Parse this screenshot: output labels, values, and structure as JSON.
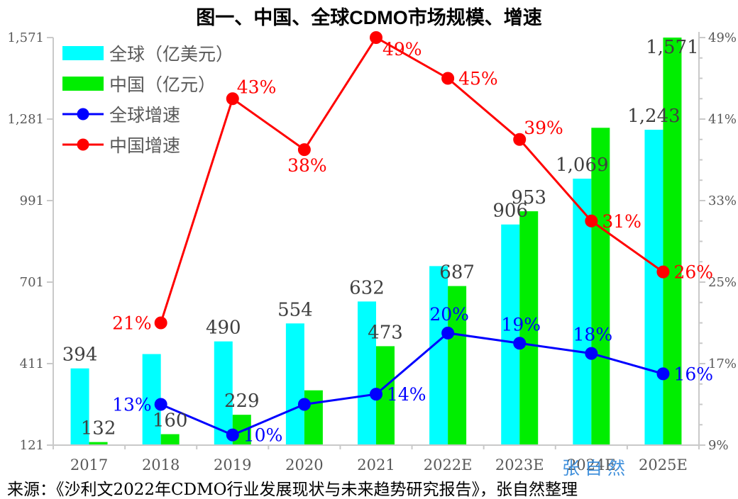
{
  "title": "图一、中国、全球CDMO市场规模、增速",
  "source_text": "来源：《沙利文2022年CDMO行业发展现状与未来趋势研究报告》，张自然整理",
  "watermark": "张自然",
  "colors": {
    "global_bar": "#00ffff",
    "china_bar": "#00ee00",
    "global_line": "#0000ff",
    "china_line": "#ff0000",
    "value_label": "#404040",
    "axis_label": "#595959",
    "axis_line": "#c9c9c9",
    "watermark": "#2e86d9",
    "title": "#000000"
  },
  "chart_data": {
    "type": "bar+line",
    "categories": [
      "2017",
      "2018",
      "2019",
      "2020",
      "2021",
      "2022E",
      "2023E",
      "2024E",
      "2025E"
    ],
    "bar_series": [
      {
        "name": "全球（亿美元）",
        "color_key": "global_bar",
        "axis": "left",
        "values": [
          394,
          445,
          490,
          554,
          632,
          758,
          906,
          1069,
          1243
        ],
        "labels": [
          "394",
          null,
          "490",
          "554",
          "632",
          null,
          "906",
          "1,069",
          "1,243"
        ]
      },
      {
        "name": "中国（亿元）",
        "color_key": "china_bar",
        "axis": "left",
        "values": [
          132,
          160,
          229,
          316,
          473,
          687,
          953,
          1250,
          1571
        ],
        "labels": [
          "132",
          "160",
          "229",
          null,
          "473",
          "687",
          "953",
          null,
          "1,571"
        ]
      }
    ],
    "line_series": [
      {
        "name": "全球增速",
        "color_key": "global_line",
        "axis": "right",
        "values": [
          null,
          13,
          10,
          13,
          14,
          20,
          19,
          18,
          16
        ],
        "labels": [
          null,
          "13%",
          "10%",
          null,
          "14%",
          "20%",
          "19%",
          "18%",
          "16%"
        ],
        "label_pos": [
          null,
          "left",
          "right",
          null,
          "right",
          "above",
          "above",
          "above",
          "right"
        ]
      },
      {
        "name": "中国增速",
        "color_key": "china_line",
        "axis": "right",
        "values": [
          null,
          21,
          43,
          38,
          49,
          45,
          39,
          31,
          26
        ],
        "labels": [
          null,
          "21%",
          "43%",
          "38%",
          "49%",
          "45%",
          "39%",
          "31%",
          "26%"
        ],
        "label_pos": [
          null,
          "left",
          "above-right",
          "below",
          "below-right",
          "right",
          "above-right",
          "right",
          "right"
        ]
      }
    ],
    "left_axis": {
      "ticks": [
        "121",
        "411",
        "701",
        "991",
        "1,281",
        "1,571"
      ],
      "values": [
        121,
        411,
        701,
        991,
        1281,
        1571
      ],
      "min": 121,
      "max": 1571
    },
    "right_axis": {
      "ticks": [
        "9%",
        "17%",
        "25%",
        "33%",
        "41%",
        "49%"
      ],
      "values": [
        9,
        17,
        25,
        33,
        41,
        49
      ],
      "min": 9,
      "max": 49,
      "minor_step": 2
    },
    "legend": [
      {
        "label": "全球（亿美元）",
        "swatch": "bar",
        "color_key": "global_bar"
      },
      {
        "label": "中国（亿元）",
        "swatch": "bar",
        "color_key": "china_bar"
      },
      {
        "label": "全球增速",
        "swatch": "line",
        "color_key": "global_line"
      },
      {
        "label": "中国增速",
        "swatch": "line",
        "color_key": "china_line"
      }
    ],
    "legend_position": "top-left",
    "grid": false
  }
}
